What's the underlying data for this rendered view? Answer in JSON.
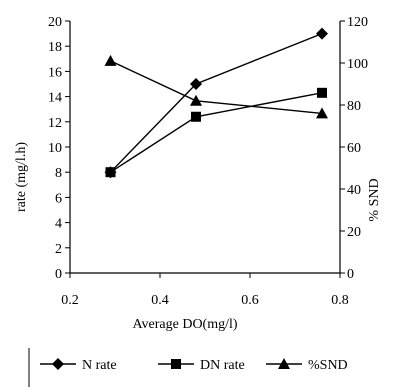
{
  "chart_data": {
    "type": "line",
    "title": "",
    "x": [
      0.29,
      0.48,
      0.76
    ],
    "xlabel": "Average DO(mg/l)",
    "ylabel_left": "rate (mg/l.h)",
    "ylabel_right": "% SND",
    "xlim": [
      0.2,
      0.8
    ],
    "ylim_left": [
      0,
      20
    ],
    "ylim_right": [
      0,
      120
    ],
    "x_ticks": [
      0.2,
      0.4,
      0.6,
      0.8
    ],
    "y_left_ticks": [
      0,
      2,
      4,
      6,
      8,
      10,
      12,
      14,
      16,
      18,
      20
    ],
    "y_right_ticks": [
      0,
      20,
      40,
      60,
      80,
      100,
      120
    ],
    "grid": false,
    "legend_position": "bottom",
    "series": [
      {
        "name": "N rate",
        "axis": "left",
        "marker": "diamond",
        "values": [
          8.0,
          15.0,
          19.0
        ]
      },
      {
        "name": "DN rate",
        "axis": "left",
        "marker": "square",
        "values": [
          8.0,
          12.4,
          14.3
        ]
      },
      {
        "name": "%SND",
        "axis": "right",
        "marker": "triangle",
        "values": [
          101,
          82,
          76
        ]
      }
    ]
  }
}
